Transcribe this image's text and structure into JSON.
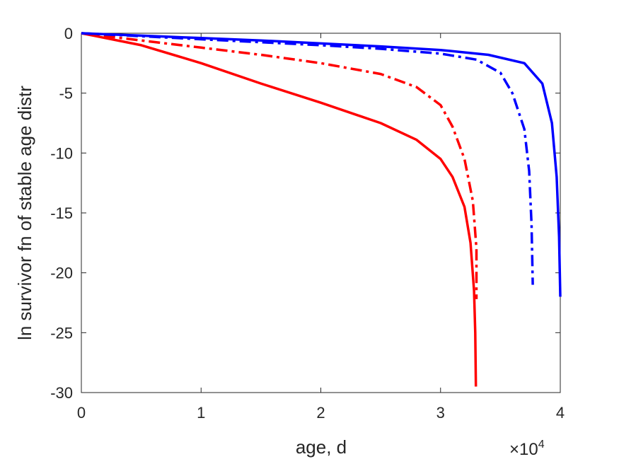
{
  "chart_data": {
    "type": "line",
    "xlabel": "age, d",
    "ylabel": "ln survivor fn of stable age distr",
    "xlim": [
      0,
      4
    ],
    "ylim": [
      -30,
      0
    ],
    "x_scale_multiplier": "×10",
    "x_scale_exponent": "4",
    "x_ticks": [
      "0",
      "1",
      "2",
      "3",
      "4"
    ],
    "y_ticks": [
      "0",
      "-5",
      "-10",
      "-15",
      "-20",
      "-25",
      "-30"
    ],
    "grid": false,
    "series": [
      {
        "color": "#ff0000",
        "style": "solid",
        "points": [
          [
            0,
            0
          ],
          [
            0.5,
            -1.0
          ],
          [
            1.0,
            -2.5
          ],
          [
            1.5,
            -4.2
          ],
          [
            2.0,
            -5.8
          ],
          [
            2.5,
            -7.5
          ],
          [
            2.8,
            -8.9
          ],
          [
            3.0,
            -10.5
          ],
          [
            3.1,
            -12.0
          ],
          [
            3.2,
            -14.5
          ],
          [
            3.25,
            -17.5
          ],
          [
            3.28,
            -21.5
          ],
          [
            3.29,
            -25.0
          ],
          [
            3.295,
            -29.5
          ]
        ]
      },
      {
        "color": "#ff0000",
        "style": "dashdot",
        "points": [
          [
            0,
            0
          ],
          [
            0.5,
            -0.6
          ],
          [
            1.0,
            -1.2
          ],
          [
            1.5,
            -1.8
          ],
          [
            2.0,
            -2.5
          ],
          [
            2.5,
            -3.4
          ],
          [
            2.8,
            -4.5
          ],
          [
            3.0,
            -6.0
          ],
          [
            3.1,
            -7.8
          ],
          [
            3.2,
            -10.5
          ],
          [
            3.27,
            -14.0
          ],
          [
            3.3,
            -18.0
          ],
          [
            3.3,
            -22.2
          ]
        ]
      },
      {
        "color": "#0000ff",
        "style": "dashdot",
        "points": [
          [
            0,
            0
          ],
          [
            0.5,
            -0.25
          ],
          [
            1.0,
            -0.5
          ],
          [
            1.5,
            -0.75
          ],
          [
            2.0,
            -1.0
          ],
          [
            2.5,
            -1.3
          ],
          [
            3.0,
            -1.7
          ],
          [
            3.3,
            -2.2
          ],
          [
            3.5,
            -3.3
          ],
          [
            3.6,
            -5.0
          ],
          [
            3.7,
            -8.0
          ],
          [
            3.74,
            -11.5
          ],
          [
            3.76,
            -16.0
          ],
          [
            3.77,
            -21.0
          ]
        ]
      },
      {
        "color": "#0000ff",
        "style": "solid",
        "points": [
          [
            0,
            0
          ],
          [
            0.5,
            -0.2
          ],
          [
            1.0,
            -0.4
          ],
          [
            1.5,
            -0.6
          ],
          [
            2.0,
            -0.85
          ],
          [
            2.5,
            -1.1
          ],
          [
            3.0,
            -1.4
          ],
          [
            3.4,
            -1.8
          ],
          [
            3.7,
            -2.5
          ],
          [
            3.85,
            -4.2
          ],
          [
            3.93,
            -7.5
          ],
          [
            3.97,
            -12.0
          ],
          [
            3.99,
            -17.0
          ],
          [
            4.0,
            -22.0
          ]
        ]
      }
    ]
  }
}
